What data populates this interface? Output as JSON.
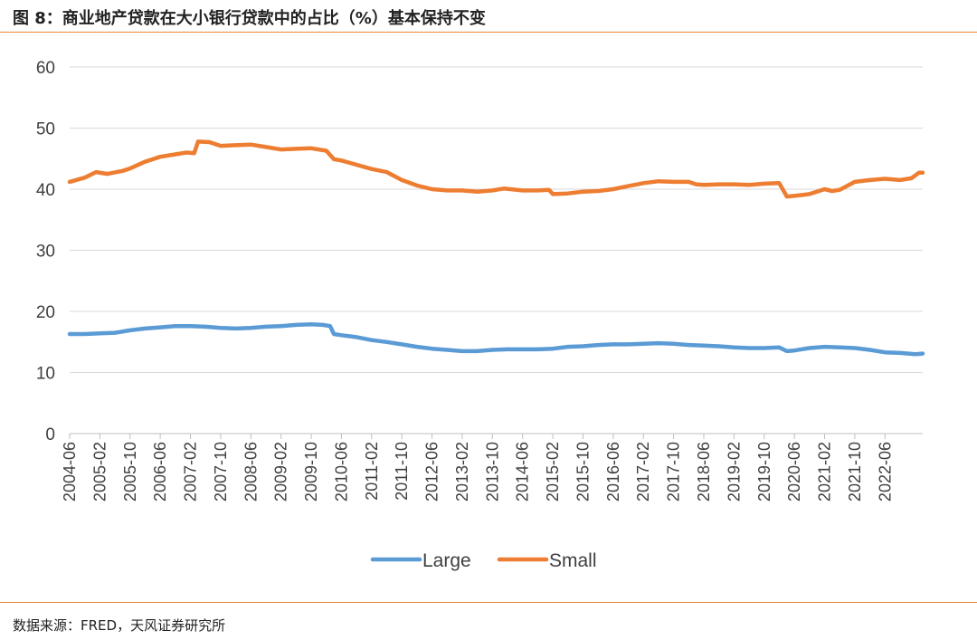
{
  "header": {
    "title": "图 8：商业地产贷款在大小银行贷款中的占比（%）基本保持不变"
  },
  "footer": {
    "source": "数据来源：FRED，天风证券研究所"
  },
  "colors": {
    "accent": "#e8873a",
    "large": "#5b9bd5",
    "small": "#ed7d31",
    "grid": "#d9d9d9",
    "axis": "#bfbfbf"
  },
  "chart_data": {
    "type": "line",
    "title": "",
    "xlabel": "",
    "ylabel": "",
    "ylim": [
      0,
      60
    ],
    "yticks": [
      0,
      10,
      20,
      30,
      40,
      50,
      60
    ],
    "xlim": [
      "2004-06",
      "2023-04"
    ],
    "xticks": [
      "2004-06",
      "2005-02",
      "2005-10",
      "2006-06",
      "2007-02",
      "2007-10",
      "2008-06",
      "2009-02",
      "2009-10",
      "2010-06",
      "2011-02",
      "2011-10",
      "2012-06",
      "2013-02",
      "2013-10",
      "2014-06",
      "2015-02",
      "2015-10",
      "2016-06",
      "2017-02",
      "2017-10",
      "2018-06",
      "2019-02",
      "2019-10",
      "2020-06",
      "2021-02",
      "2021-10",
      "2022-06"
    ],
    "legend_position": "bottom",
    "grid": true,
    "series": [
      {
        "name": "Large",
        "points": [
          [
            "2004-06",
            16.3
          ],
          [
            "2004-10",
            16.3
          ],
          [
            "2005-02",
            16.4
          ],
          [
            "2005-06",
            16.5
          ],
          [
            "2005-10",
            16.9
          ],
          [
            "2006-02",
            17.2
          ],
          [
            "2006-06",
            17.4
          ],
          [
            "2006-10",
            17.6
          ],
          [
            "2007-02",
            17.6
          ],
          [
            "2007-06",
            17.5
          ],
          [
            "2007-10",
            17.3
          ],
          [
            "2008-02",
            17.2
          ],
          [
            "2008-06",
            17.3
          ],
          [
            "2008-10",
            17.5
          ],
          [
            "2009-02",
            17.6
          ],
          [
            "2009-06",
            17.8
          ],
          [
            "2009-10",
            17.9
          ],
          [
            "2010-01",
            17.8
          ],
          [
            "2010-03",
            17.6
          ],
          [
            "2010-04",
            16.3
          ],
          [
            "2010-06",
            16.1
          ],
          [
            "2010-10",
            15.8
          ],
          [
            "2011-02",
            15.3
          ],
          [
            "2011-06",
            15.0
          ],
          [
            "2011-10",
            14.6
          ],
          [
            "2012-02",
            14.2
          ],
          [
            "2012-06",
            13.9
          ],
          [
            "2012-10",
            13.7
          ],
          [
            "2013-02",
            13.5
          ],
          [
            "2013-06",
            13.5
          ],
          [
            "2013-10",
            13.7
          ],
          [
            "2014-02",
            13.8
          ],
          [
            "2014-06",
            13.8
          ],
          [
            "2014-10",
            13.8
          ],
          [
            "2015-02",
            13.9
          ],
          [
            "2015-06",
            14.2
          ],
          [
            "2015-10",
            14.3
          ],
          [
            "2016-02",
            14.5
          ],
          [
            "2016-06",
            14.6
          ],
          [
            "2016-10",
            14.6
          ],
          [
            "2017-02",
            14.7
          ],
          [
            "2017-06",
            14.8
          ],
          [
            "2017-10",
            14.7
          ],
          [
            "2018-02",
            14.5
          ],
          [
            "2018-06",
            14.4
          ],
          [
            "2018-10",
            14.3
          ],
          [
            "2019-02",
            14.1
          ],
          [
            "2019-06",
            14.0
          ],
          [
            "2019-10",
            14.0
          ],
          [
            "2020-02",
            14.1
          ],
          [
            "2020-04",
            13.5
          ],
          [
            "2020-06",
            13.6
          ],
          [
            "2020-10",
            14.0
          ],
          [
            "2021-02",
            14.2
          ],
          [
            "2021-06",
            14.1
          ],
          [
            "2021-10",
            14.0
          ],
          [
            "2022-02",
            13.7
          ],
          [
            "2022-06",
            13.3
          ],
          [
            "2022-10",
            13.2
          ],
          [
            "2023-02",
            13.0
          ],
          [
            "2023-04",
            13.1
          ]
        ]
      },
      {
        "name": "Small",
        "points": [
          [
            "2004-06",
            41.2
          ],
          [
            "2004-10",
            41.9
          ],
          [
            "2005-01",
            42.8
          ],
          [
            "2005-04",
            42.5
          ],
          [
            "2005-08",
            43.0
          ],
          [
            "2005-10",
            43.4
          ],
          [
            "2006-02",
            44.5
          ],
          [
            "2006-06",
            45.3
          ],
          [
            "2006-10",
            45.7
          ],
          [
            "2007-01",
            46.0
          ],
          [
            "2007-03",
            45.9
          ],
          [
            "2007-04",
            47.8
          ],
          [
            "2007-07",
            47.7
          ],
          [
            "2007-10",
            47.1
          ],
          [
            "2008-02",
            47.2
          ],
          [
            "2008-06",
            47.3
          ],
          [
            "2008-10",
            46.9
          ],
          [
            "2009-02",
            46.5
          ],
          [
            "2009-06",
            46.6
          ],
          [
            "2009-10",
            46.7
          ],
          [
            "2010-02",
            46.3
          ],
          [
            "2010-04",
            44.9
          ],
          [
            "2010-06",
            44.7
          ],
          [
            "2010-10",
            44.0
          ],
          [
            "2011-02",
            43.3
          ],
          [
            "2011-06",
            42.8
          ],
          [
            "2011-10",
            41.5
          ],
          [
            "2012-02",
            40.6
          ],
          [
            "2012-06",
            40.0
          ],
          [
            "2012-10",
            39.8
          ],
          [
            "2013-02",
            39.8
          ],
          [
            "2013-06",
            39.6
          ],
          [
            "2013-10",
            39.8
          ],
          [
            "2014-01",
            40.1
          ],
          [
            "2014-06",
            39.8
          ],
          [
            "2014-10",
            39.8
          ],
          [
            "2015-01",
            39.9
          ],
          [
            "2015-02",
            39.2
          ],
          [
            "2015-06",
            39.3
          ],
          [
            "2015-10",
            39.6
          ],
          [
            "2016-02",
            39.7
          ],
          [
            "2016-06",
            40.0
          ],
          [
            "2016-10",
            40.5
          ],
          [
            "2017-02",
            41.0
          ],
          [
            "2017-06",
            41.3
          ],
          [
            "2017-10",
            41.2
          ],
          [
            "2018-02",
            41.2
          ],
          [
            "2018-04",
            40.8
          ],
          [
            "2018-06",
            40.7
          ],
          [
            "2018-10",
            40.8
          ],
          [
            "2019-02",
            40.8
          ],
          [
            "2019-06",
            40.7
          ],
          [
            "2019-10",
            40.9
          ],
          [
            "2020-02",
            41.0
          ],
          [
            "2020-04",
            38.8
          ],
          [
            "2020-06",
            38.9
          ],
          [
            "2020-10",
            39.2
          ],
          [
            "2021-02",
            40.0
          ],
          [
            "2021-04",
            39.7
          ],
          [
            "2021-06",
            39.9
          ],
          [
            "2021-10",
            41.2
          ],
          [
            "2022-02",
            41.5
          ],
          [
            "2022-06",
            41.7
          ],
          [
            "2022-10",
            41.5
          ],
          [
            "2023-01",
            41.8
          ],
          [
            "2023-03",
            42.7
          ],
          [
            "2023-04",
            42.7
          ]
        ]
      }
    ]
  }
}
